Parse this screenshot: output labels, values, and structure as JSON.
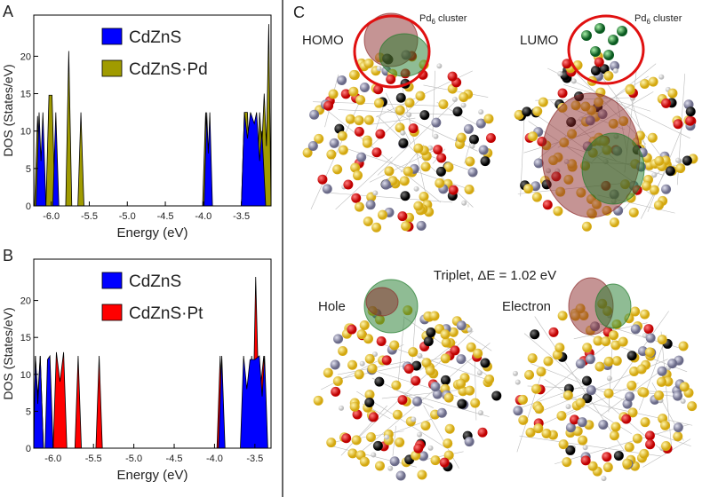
{
  "chart_data": [
    {
      "type": "area",
      "label": "A",
      "xlabel": "Energy (eV)",
      "ylabel": "DOS (States/eV)",
      "xlim": [
        -6.23,
        -3.11
      ],
      "ylim": [
        0,
        25.5
      ],
      "xticks": [
        {
          "value": -6,
          "label": "-6.0"
        },
        -5.5,
        {
          "value": -5,
          "label": "-5.0"
        },
        -4.5,
        {
          "value": -4,
          "label": "-4.0"
        },
        -3.5
      ],
      "yticks": [
        0,
        5,
        10,
        15,
        20
      ],
      "legend": "upper right",
      "series": [
        {
          "name": "CdZnS",
          "color": "#0000ff",
          "x": [
            -6.2,
            -6.16,
            -6.135,
            -6.11,
            -6.07,
            -5.98,
            -5.94,
            -5.9,
            -3.99,
            -3.955,
            -3.935,
            -3.915,
            -3.88,
            -3.5,
            -3.46,
            -3.42,
            -3.38,
            -3.33,
            -3.3,
            -3.26,
            -3.23,
            -3.18
          ],
          "values": [
            0,
            12.5,
            6,
            12.5,
            0,
            0,
            12.5,
            0,
            0,
            12.5,
            7,
            12.5,
            0,
            0,
            12.5,
            9,
            12.5,
            11,
            12.5,
            6,
            10,
            0
          ]
        },
        {
          "name": "CdZnS·Pd",
          "color": "#a09b00",
          "x": [
            -6.22,
            -6.18,
            -6.14,
            -6.07,
            -6.03,
            -5.99,
            -5.95,
            -5.81,
            -5.77,
            -5.73,
            -5.65,
            -5.61,
            -5.57,
            -4.01,
            -3.97,
            -3.93,
            -3.5,
            -3.46,
            -3.42,
            -3.38,
            -3.3,
            -3.26,
            -3.23,
            -3.2,
            -3.17,
            -3.14,
            -3.11
          ],
          "values": [
            0,
            12,
            0,
            0,
            14.8,
            14.8,
            0,
            0,
            20.7,
            0,
            0,
            12.5,
            0,
            0,
            12.5,
            0,
            0,
            12.5,
            12.5,
            0,
            0,
            12.5,
            8,
            15,
            8,
            24.3,
            0
          ]
        }
      ]
    },
    {
      "type": "area",
      "label": "B",
      "xlabel": "Energy (eV)",
      "ylabel": "DOS (States/eV)",
      "xlim": [
        -6.24,
        -3.3
      ],
      "ylim": [
        0,
        25.6
      ],
      "xticks": [
        {
          "value": -6,
          "label": "-6.0"
        },
        -5.5,
        {
          "value": -5,
          "label": "-5.0"
        },
        -4.5,
        {
          "value": -4,
          "label": "-4.0"
        },
        -3.5
      ],
      "yticks": [
        0,
        5,
        10,
        15,
        20
      ],
      "legend": "upper right",
      "series": [
        {
          "name": "CdZnS",
          "color": "#0000ff",
          "x": [
            -6.24,
            -6.22,
            -6.19,
            -6.16,
            -6.12,
            -6.1,
            -6.07,
            -6.04,
            -6.0,
            -3.95,
            -3.91,
            -3.87,
            -3.68,
            -3.64,
            -3.6,
            -3.56,
            -3.5,
            -3.445,
            -3.41,
            -3.38,
            -3.34
          ],
          "values": [
            0,
            12.5,
            6,
            12.5,
            0,
            0,
            12,
            12.5,
            0,
            0,
            12.5,
            0,
            0,
            12.5,
            8,
            12,
            12,
            12.5,
            7,
            12.5,
            0
          ]
        },
        {
          "name": "CdZnS·Pt",
          "color": "#ff0000",
          "x": [
            -6.24,
            -6.22,
            -6.19,
            -6.16,
            -6.12,
            -6.0,
            -5.96,
            -5.915,
            -5.87,
            -5.83,
            -5.73,
            -5.69,
            -5.65,
            -5.47,
            -5.43,
            -5.39,
            -3.97,
            -3.93,
            -3.89,
            -3.58,
            -3.54,
            -3.515,
            -3.49,
            -3.45,
            -3.39,
            -3.35
          ],
          "values": [
            0,
            12.5,
            7,
            12.5,
            0,
            0,
            13,
            9,
            13,
            0,
            0,
            12.5,
            0,
            0,
            12.5,
            0,
            0,
            12.5,
            0,
            0,
            12.5,
            9,
            23.2,
            6,
            12.5,
            0
          ]
        }
      ]
    }
  ],
  "panel_c": {
    "label": "C",
    "homo": "HOMO",
    "lumo": "LUMO",
    "cluster_label": {
      "text": "Pd",
      "sub": "6",
      "rest": " cluster"
    },
    "triplet": "Triplet, ΔE = 1.02 eV",
    "hole": "Hole",
    "electron": "Electron"
  }
}
